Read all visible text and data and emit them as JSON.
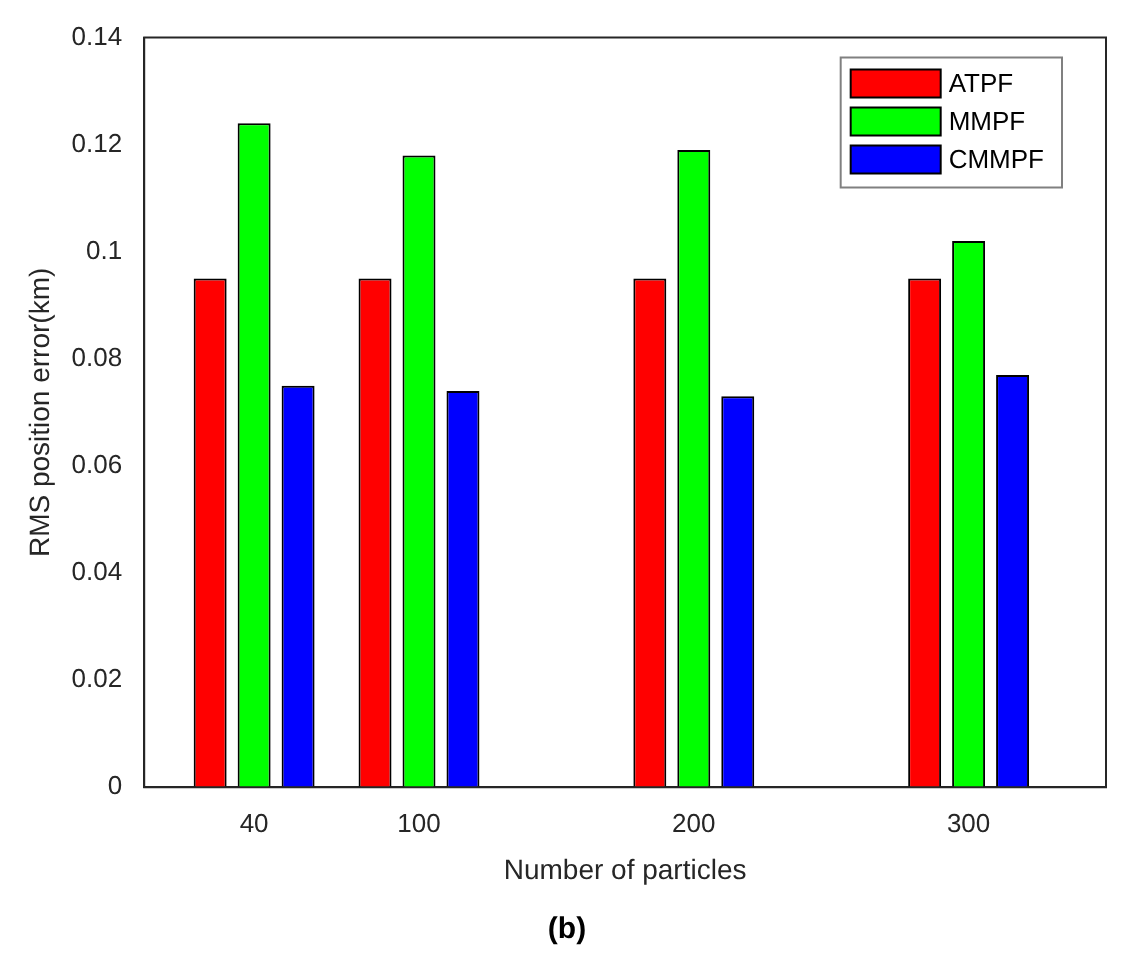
{
  "chart_data": {
    "type": "bar",
    "xlabel": "Number of particles",
    "ylabel": "RMS position error(km)",
    "x": [
      40,
      100,
      200,
      300
    ],
    "series": [
      {
        "name": "ATPF",
        "color": "#ff0000",
        "values": [
          0.095,
          0.095,
          0.095,
          0.095
        ]
      },
      {
        "name": "MMPF",
        "color": "#00ff00",
        "values": [
          0.124,
          0.118,
          0.119,
          0.102
        ]
      },
      {
        "name": "CMMPF",
        "color": "#0000ff",
        "values": [
          0.075,
          0.074,
          0.073,
          0.077
        ]
      }
    ],
    "xlim": [
      0,
      350
    ],
    "xticks": [
      40,
      100,
      200,
      300
    ],
    "ylim": [
      0,
      0.14
    ],
    "yticks": [
      0,
      0.02,
      0.04,
      0.06,
      0.08,
      0.1,
      0.12,
      0.14
    ],
    "grid": false,
    "legend": "top right",
    "annotations": [
      "(b)"
    ]
  }
}
